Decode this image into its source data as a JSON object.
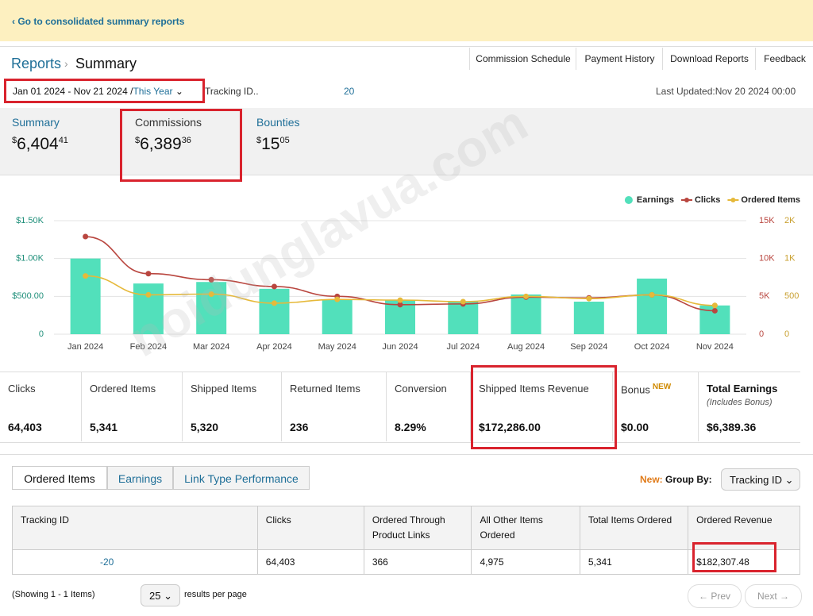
{
  "banner": {
    "link": "‹ Go to consolidated summary reports"
  },
  "header": {
    "breadcrumb": "Reports",
    "separator": "›",
    "title": "Summary",
    "tabs": [
      "Commission Schedule",
      "Payment History",
      "Download Reports",
      "Feedback"
    ]
  },
  "filters": {
    "date_range": "Jan 01 2024 - Nov 21 2024 /",
    "period": "This Year",
    "tracking_label": "Tracking ID..",
    "tracking_suffix": "20",
    "last_updated": "Last Updated:Nov 20 2024 00:00"
  },
  "totals": [
    {
      "label": "Summary",
      "symbol": "$",
      "amount": "6,404",
      "cents": "41"
    },
    {
      "label": "Commissions",
      "symbol": "$",
      "amount": "6,389",
      "cents": "36"
    },
    {
      "label": "Bounties",
      "symbol": "$",
      "amount": "15",
      "cents": "05"
    }
  ],
  "chart_data": {
    "type": "bar",
    "categories": [
      "Jan 2024",
      "Feb 2024",
      "Mar 2024",
      "Apr 2024",
      "May 2024",
      "Jun 2024",
      "Jul 2024",
      "Aug 2024",
      "Sep 2024",
      "Oct 2024",
      "Nov 2024"
    ],
    "series": [
      {
        "name": "Earnings",
        "color": "#52e0bb",
        "kind": "bar",
        "values": [
          1000,
          670,
          690,
          600,
          460,
          450,
          430,
          525,
          430,
          735,
          380
        ]
      },
      {
        "name": "Clicks",
        "color": "#b9463f",
        "kind": "line",
        "axis": "y2",
        "values": [
          12900,
          8000,
          7200,
          6300,
          5000,
          3900,
          4000,
          4900,
          4800,
          5200,
          3100
        ]
      },
      {
        "name": "Ordered Items",
        "color": "#e6b93a",
        "kind": "line",
        "axis": "y3",
        "values": [
          770,
          520,
          530,
          410,
          460,
          450,
          430,
          500,
          470,
          520,
          380
        ]
      }
    ],
    "ylim": [
      0,
      1500
    ],
    "yticks": [
      0,
      {
        "value": 500,
        "label": "$500.00"
      },
      {
        "value": 1000,
        "label": "$1.00K"
      },
      {
        "value": 1500,
        "label": "$1.50K"
      }
    ],
    "y2lim": [
      0,
      15000
    ],
    "y2ticks": [
      0,
      {
        "value": 5000,
        "label": "5K"
      },
      {
        "value": 10000,
        "label": "10K"
      },
      {
        "value": 15000,
        "label": "15K"
      }
    ],
    "y3lim": [
      0,
      1500
    ],
    "y3ticks": [
      0,
      500,
      {
        "value": 1000,
        "label": "1K"
      },
      {
        "value": 1500,
        "label": "2K"
      }
    ],
    "grid": true,
    "legend": "top-right"
  },
  "stats": [
    {
      "label": "Clicks",
      "value": "64,403"
    },
    {
      "label": "Ordered Items",
      "value": "5,341"
    },
    {
      "label": "Shipped Items",
      "value": "5,320"
    },
    {
      "label": "Returned Items",
      "value": "236"
    },
    {
      "label": "Conversion",
      "value": "8.29%"
    },
    {
      "label": "Shipped Items Revenue",
      "value": "$172,286.00"
    },
    {
      "label": "Bonus",
      "badge": "NEW",
      "value": "$0.00"
    },
    {
      "label": "Total Earnings",
      "note": "(Includes Bonus)",
      "value": "$6,389.36"
    }
  ],
  "tabs": [
    "Ordered Items",
    "Earnings",
    "Link Type Performance"
  ],
  "group_by": {
    "new": "New:",
    "label": "Group By:",
    "value": "Tracking ID"
  },
  "table": {
    "headers": [
      "Tracking ID",
      "Clicks",
      "Ordered Through Product Links",
      "All Other Items Ordered",
      "Total Items Ordered",
      "Ordered Revenue"
    ],
    "rows": [
      [
        "-20",
        "64,403",
        "366",
        "4,975",
        "5,341",
        "$182,307.48"
      ]
    ]
  },
  "footer": {
    "showing": "(Showing 1 - 1 Items)",
    "per_page": "25",
    "per_page_label": "results per page",
    "prev": "← Prev",
    "next": "Next →"
  },
  "watermark": "noidunglavua.com"
}
